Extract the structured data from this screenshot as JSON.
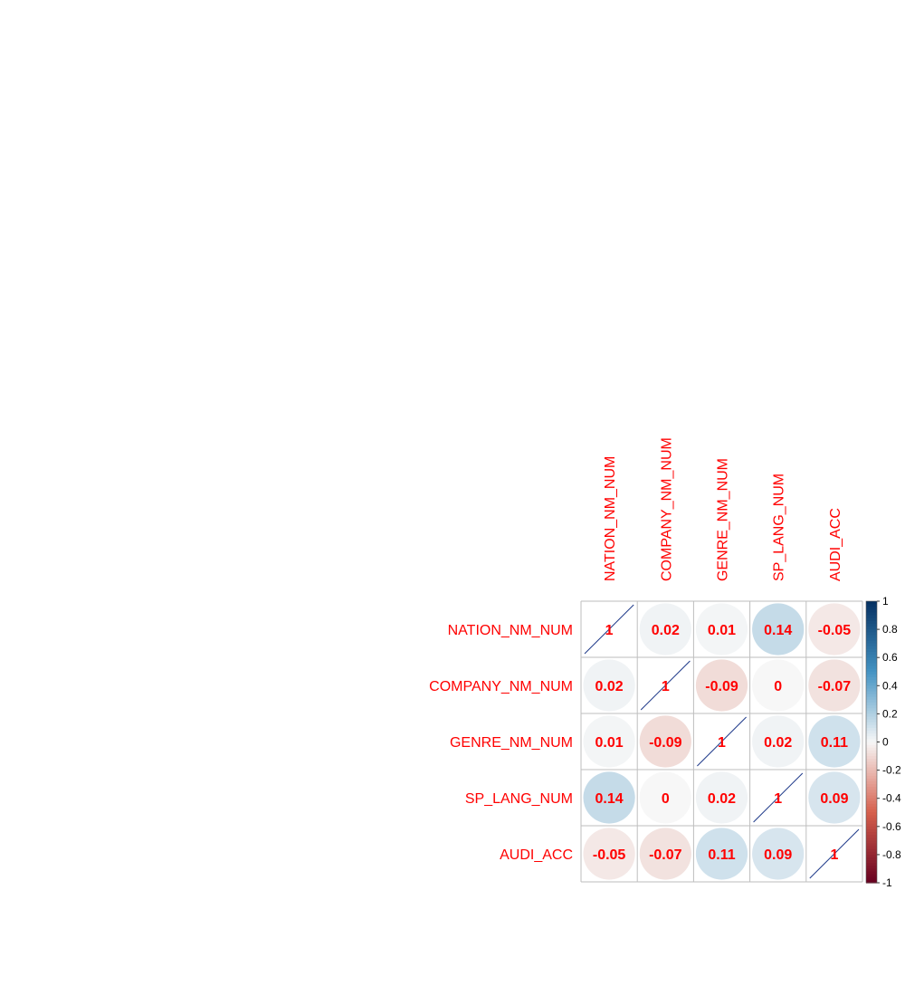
{
  "chart_data": {
    "type": "heatmap",
    "variables": [
      "NATION_NM_NUM",
      "COMPANY_NM_NUM",
      "GENRE_NM_NUM",
      "SP_LANG_NUM",
      "AUDI_ACC"
    ],
    "matrix": [
      [
        1,
        0.02,
        0.01,
        0.14,
        -0.05
      ],
      [
        0.02,
        1,
        -0.09,
        0,
        -0.07
      ],
      [
        0.01,
        -0.09,
        1,
        0.02,
        0.11
      ],
      [
        0.14,
        0,
        0.02,
        1,
        0.09
      ],
      [
        -0.05,
        -0.07,
        0.11,
        0.09,
        1
      ]
    ],
    "cell_labels": [
      [
        "1",
        "0.02",
        "0.01",
        "0.14",
        "-0.05"
      ],
      [
        "0.02",
        "1",
        "-0.09",
        "0",
        "-0.07"
      ],
      [
        "0.01",
        "-0.09",
        "1",
        "0.02",
        "0.11"
      ],
      [
        "0.14",
        "0",
        "0.02",
        "1",
        "0.09"
      ],
      [
        "-0.05",
        "-0.07",
        "0.11",
        "0.09",
        "1"
      ]
    ],
    "method": "circle",
    "color_range": [
      -1,
      1
    ],
    "colorbar_ticks": [
      "1",
      "0.8",
      "0.6",
      "0.4",
      "0.2",
      "0",
      "-0.2",
      "-0.4",
      "-0.6",
      "-0.8",
      "-1"
    ],
    "colors": {
      "label_text": "#ff0000",
      "cell_text": "#ff0000",
      "grid": "#bebebe",
      "negative_strong": "#67001f",
      "negative_mid": "#d6604d",
      "neutral": "#f7f7f7",
      "positive_mid": "#4393c3",
      "positive_strong": "#053061",
      "diagonal_line": "#1f3a8a"
    }
  }
}
